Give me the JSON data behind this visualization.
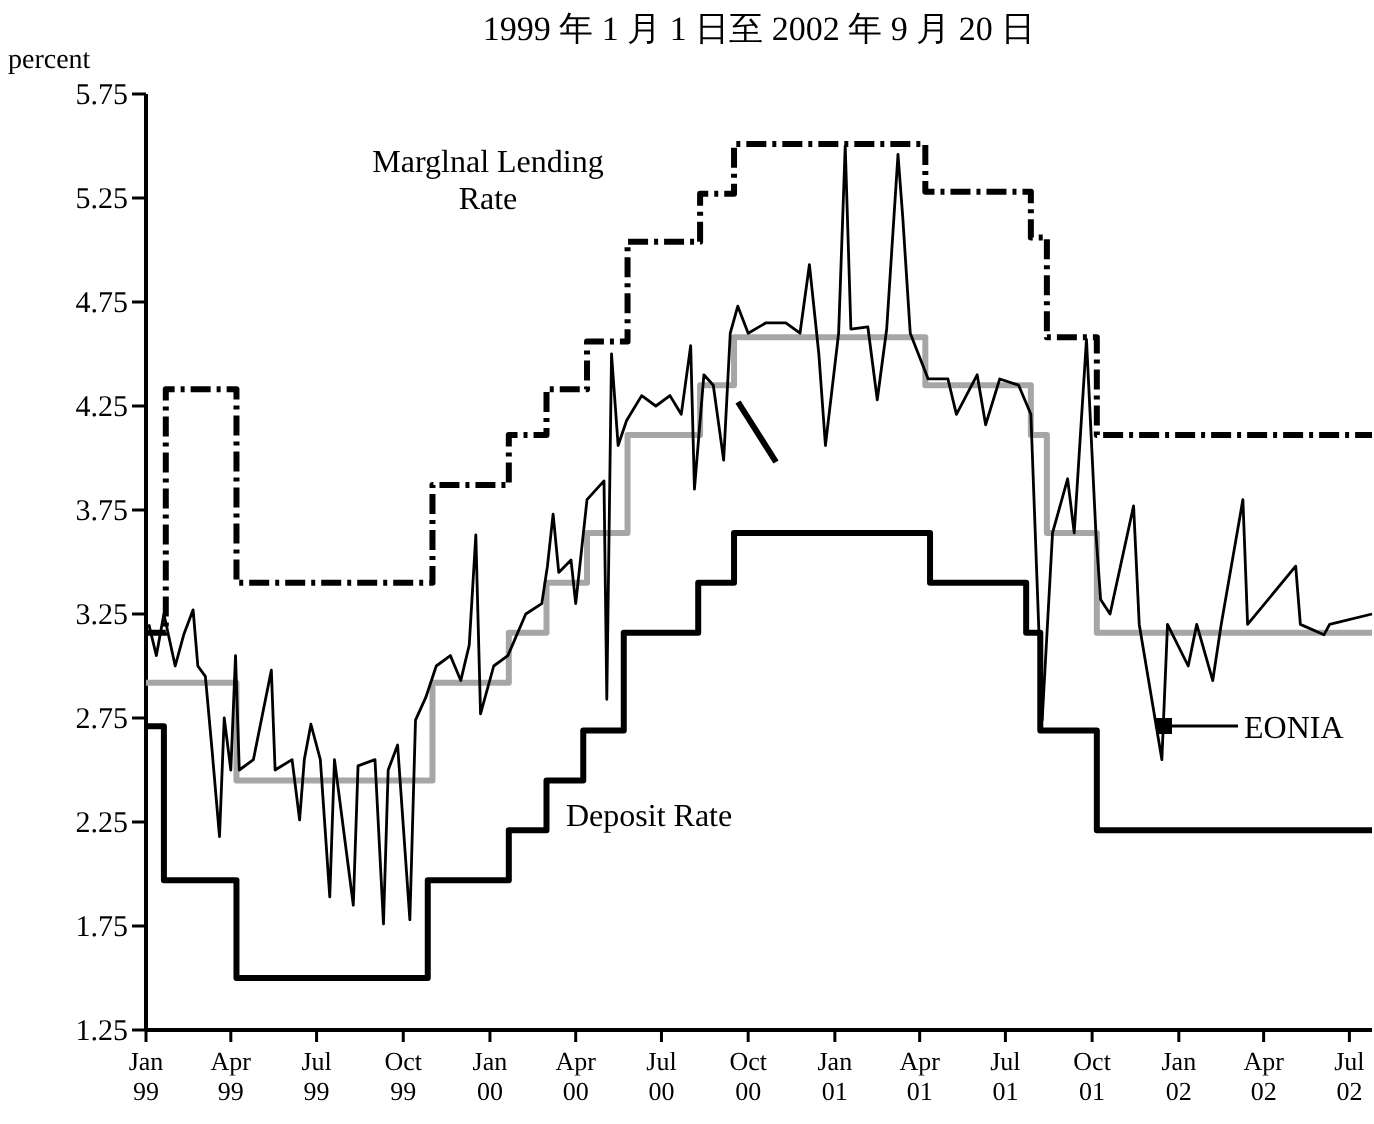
{
  "chart_data": {
    "type": "step",
    "title": "1999 年 1 月 1 日至 2002 年 9 月 20 日",
    "ylabel": "percent",
    "xlim": [
      "1999-01-01",
      "2002-07-25"
    ],
    "ylim": [
      1.25,
      5.75
    ],
    "xticks": [
      {
        "value": "1999-01",
        "label": "Jan\n99"
      },
      {
        "value": "1999-04",
        "label": "Apr\n99"
      },
      {
        "value": "1999-07",
        "label": "Jul\n99"
      },
      {
        "value": "1999-10",
        "label": "Oct\n99"
      },
      {
        "value": "2000-01",
        "label": "Jan\n00"
      },
      {
        "value": "2000-04",
        "label": "Apr\n00"
      },
      {
        "value": "2000-07",
        "label": "Jul\n00"
      },
      {
        "value": "2000-10",
        "label": "Oct\n00"
      },
      {
        "value": "2001-01",
        "label": "Jan\n01"
      },
      {
        "value": "2001-04",
        "label": "Apr\n01"
      },
      {
        "value": "2001-07",
        "label": "Jul\n01"
      },
      {
        "value": "2001-10",
        "label": "Oct\n01"
      },
      {
        "value": "2002-01",
        "label": "Jan\n02"
      },
      {
        "value": "2002-04",
        "label": "Apr\n02"
      },
      {
        "value": "2002-07",
        "label": "Jul\n02"
      }
    ],
    "yticks": [
      1.25,
      1.75,
      2.25,
      2.75,
      3.25,
      3.75,
      4.25,
      4.75,
      5.25,
      5.75
    ],
    "grid": false,
    "legend": "right",
    "series": [
      {
        "color": "#a6a6a6",
        "x": [
          "1999-01-01",
          "1999-04-07",
          "1999-11-01",
          "2000-01-21",
          "2000-03-01",
          "2000-04-13",
          "2000-05-26",
          "2000-08-11",
          "2000-09-16",
          "2001-04-07",
          "2001-07-28",
          "2001-08-14",
          "2001-10-06",
          "2002-07-25"
        ],
        "values": [
          2.92,
          2.45,
          2.92,
          3.16,
          3.4,
          3.64,
          4.11,
          4.35,
          4.58,
          4.35,
          4.11,
          3.64,
          3.16,
          3.16
        ]
      },
      {
        "name": "EONIA",
        "type": "line",
        "color": "#000000",
        "x": [
          "1999-01-04",
          "1999-01-12",
          "1999-01-20",
          "1999-02-01",
          "1999-02-10",
          "1999-02-20",
          "1999-02-25",
          "1999-03-05",
          "1999-03-12",
          "1999-03-20",
          "1999-03-25",
          "1999-04-01",
          "1999-04-06",
          "1999-04-10",
          "1999-04-25",
          "1999-05-14",
          "1999-05-18",
          "1999-06-05",
          "1999-06-13",
          "1999-06-18",
          "1999-06-25",
          "1999-07-05",
          "1999-07-15",
          "1999-07-20",
          "1999-08-09",
          "1999-08-14",
          "1999-09-01",
          "1999-09-10",
          "1999-09-15",
          "1999-09-25",
          "1999-10-08",
          "1999-10-14",
          "1999-10-25",
          "1999-11-05",
          "1999-11-20",
          "1999-12-01",
          "1999-12-10",
          "1999-12-17",
          "1999-12-22",
          "2000-01-05",
          "2000-01-20",
          "2000-02-08",
          "2000-02-25",
          "2000-03-02",
          "2000-03-08",
          "2000-03-14",
          "2000-03-27",
          "2000-04-01",
          "2000-04-13",
          "2000-05-01",
          "2000-05-04",
          "2000-05-09",
          "2000-05-16",
          "2000-05-25",
          "2000-06-10",
          "2000-06-25",
          "2000-07-10",
          "2000-07-22",
          "2000-08-01",
          "2000-08-05",
          "2000-08-15",
          "2000-08-25",
          "2000-09-05",
          "2000-09-12",
          "2000-09-20",
          "2000-10-01",
          "2000-10-20",
          "2000-11-10",
          "2000-11-25",
          "2000-12-05",
          "2000-12-15",
          "2000-12-22",
          "2001-01-05",
          "2001-01-12",
          "2001-01-18",
          "2001-02-05",
          "2001-02-15",
          "2001-02-25",
          "2001-03-09",
          "2001-03-14",
          "2001-03-22",
          "2001-04-10",
          "2001-05-01",
          "2001-05-10",
          "2001-06-01",
          "2001-06-10",
          "2001-06-25",
          "2001-07-15",
          "2001-07-28",
          "2001-08-09",
          "2001-08-20",
          "2001-09-05",
          "2001-09-12",
          "2001-09-25",
          "2001-10-05",
          "2001-10-10",
          "2001-10-20",
          "2001-11-14",
          "2001-11-20",
          "2001-12-14",
          "2001-12-20",
          "2002-01-11",
          "2002-01-20",
          "2002-02-06",
          "2002-02-15",
          "2002-03-10",
          "2002-03-15",
          "2002-05-05",
          "2002-05-10",
          "2002-06-04",
          "2002-06-10",
          "2002-07-25"
        ],
        "values": [
          3.2,
          3.05,
          3.25,
          3.0,
          3.15,
          3.27,
          3.0,
          2.95,
          2.6,
          2.18,
          2.75,
          2.5,
          3.05,
          2.5,
          2.55,
          2.98,
          2.5,
          2.55,
          2.26,
          2.55,
          2.72,
          2.55,
          1.89,
          2.55,
          1.85,
          2.52,
          2.55,
          1.76,
          2.5,
          2.62,
          1.78,
          2.74,
          2.85,
          3.0,
          3.05,
          2.93,
          3.1,
          3.63,
          2.77,
          3.0,
          3.05,
          3.25,
          3.3,
          3.48,
          3.73,
          3.45,
          3.51,
          3.3,
          3.8,
          3.89,
          2.84,
          4.5,
          4.06,
          4.18,
          4.3,
          4.25,
          4.3,
          4.21,
          4.54,
          3.85,
          4.4,
          4.35,
          3.99,
          4.6,
          4.73,
          4.6,
          4.65,
          4.65,
          4.6,
          4.93,
          4.5,
          4.06,
          4.6,
          5.5,
          4.62,
          4.63,
          4.28,
          4.62,
          5.46,
          5.16,
          4.6,
          4.38,
          4.38,
          4.21,
          4.4,
          4.16,
          4.38,
          4.35,
          4.21,
          2.74,
          3.64,
          3.9,
          3.64,
          4.57,
          3.64,
          3.32,
          3.25,
          3.77,
          3.2,
          2.55,
          3.2,
          3.0,
          3.2,
          2.93,
          3.2,
          3.8,
          3.2,
          3.48,
          3.2,
          3.15,
          3.2,
          3.25
        ]
      },
      {
        "name": "Deposit Rate",
        "color": "#000000",
        "x": [
          "1999-01-01",
          "1999-01-20",
          "1999-04-07",
          "1999-10-27",
          "2000-01-21",
          "2000-03-01",
          "2000-04-09",
          "2000-05-22",
          "2000-08-09",
          "2000-09-16",
          "2001-04-12",
          "2001-07-23",
          "2001-08-07",
          "2001-10-06",
          "2002-07-25"
        ],
        "values": [
          2.71,
          1.97,
          1.5,
          1.97,
          2.21,
          2.45,
          2.69,
          3.16,
          3.4,
          3.64,
          3.4,
          3.16,
          2.69,
          2.21,
          2.21
        ]
      },
      {
        "name": "Marglnal Lending Rate",
        "color": "#000000",
        "line_style": "dashed",
        "x": [
          "1999-01-01",
          "1999-01-22",
          "1999-04-07",
          "1999-11-01",
          "2000-01-21",
          "2000-03-01",
          "2000-04-13",
          "2000-05-26",
          "2000-08-11",
          "2000-09-16",
          "2001-04-07",
          "2001-07-28",
          "2001-08-14",
          "2001-10-06",
          "2002-07-25"
        ],
        "values": [
          3.16,
          4.33,
          3.4,
          3.87,
          4.11,
          4.33,
          4.56,
          5.04,
          5.27,
          5.51,
          5.28,
          5.06,
          4.58,
          4.11,
          4.11
        ]
      }
    ]
  }
}
